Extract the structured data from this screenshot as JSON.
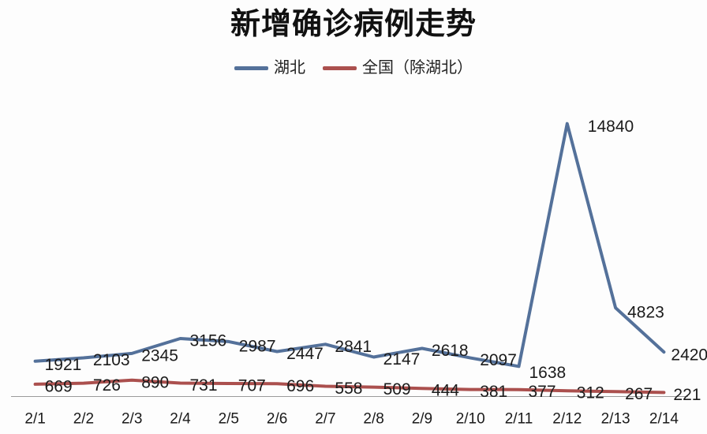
{
  "chart": {
    "title": "新增确诊病例走势"
  },
  "chart_data": {
    "type": "line",
    "title": "新增确诊病例走势",
    "categories": [
      "2/1",
      "2/2",
      "2/3",
      "2/4",
      "2/5",
      "2/6",
      "2/7",
      "2/8",
      "2/9",
      "2/10",
      "2/11",
      "2/12",
      "2/13",
      "2/14"
    ],
    "series": [
      {
        "name": "湖北",
        "color": "#54719a",
        "values": [
          1921,
          2103,
          2345,
          3156,
          2987,
          2447,
          2841,
          2147,
          2618,
          2097,
          1638,
          14840,
          4823,
          2420
        ]
      },
      {
        "name": "全国（除湖北）",
        "color": "#ab504e",
        "values": [
          669,
          726,
          890,
          731,
          707,
          696,
          558,
          509,
          444,
          381,
          377,
          312,
          267,
          221
        ]
      }
    ],
    "xlabel": "",
    "ylabel": "",
    "ylim": [
      0,
      15000
    ],
    "grid": false,
    "y_axis_visible": false,
    "data_labels": true,
    "legend_position": "top-center",
    "axis_line_color": "#9b9b9b",
    "data_label_color": "#1b1b1b",
    "tick_label_color": "#1a1a1a"
  }
}
